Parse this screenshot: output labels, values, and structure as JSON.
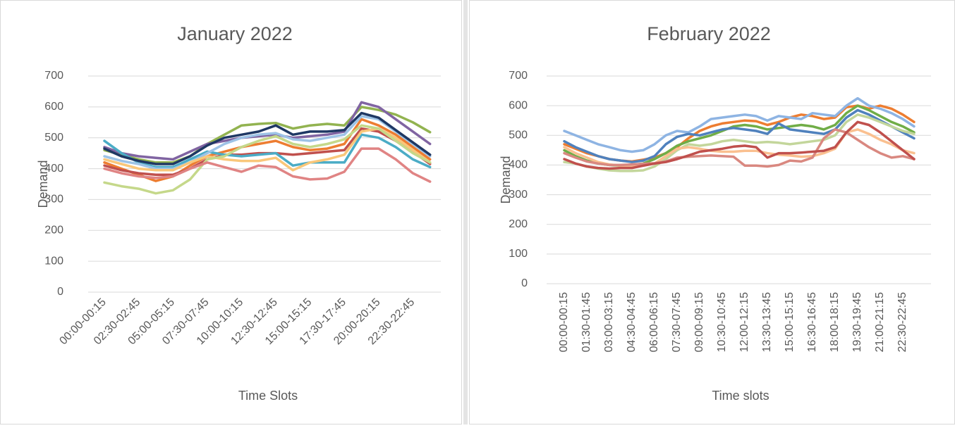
{
  "chart_data": [
    {
      "type": "line",
      "title": "January 2022",
      "xlabel": "Time Slots",
      "ylabel": "Demand",
      "categories": [
        "00:00-00:15",
        null,
        "02:30-02:45",
        null,
        "05:00-05:15",
        null,
        "07:30-07:45",
        null,
        "10:00-10:15",
        null,
        "12:30-12:45",
        null,
        "15:00-15:15",
        null,
        "17:30-17:45",
        null,
        "20:00-20:15",
        null,
        "22:30-22:45",
        null
      ],
      "ylim": [
        0,
        700
      ],
      "yticks": [
        0,
        100,
        200,
        300,
        400,
        500,
        600,
        700
      ],
      "grid": true,
      "series": [
        {
          "color": "#92b350",
          "values": [
            460,
            445,
            430,
            420,
            420,
            440,
            480,
            510,
            540,
            545,
            548,
            530,
            540,
            545,
            540,
            600,
            590,
            575,
            550,
            518
          ]
        },
        {
          "color": "#8064a2",
          "values": [
            470,
            450,
            440,
            435,
            430,
            455,
            480,
            490,
            500,
            505,
            510,
            500,
            505,
            510,
            520,
            615,
            600,
            560,
            520,
            480
          ]
        },
        {
          "color": "#ed7d31",
          "values": [
            420,
            400,
            380,
            360,
            375,
            410,
            440,
            455,
            470,
            480,
            490,
            470,
            460,
            465,
            480,
            560,
            540,
            510,
            470,
            430
          ]
        },
        {
          "color": "#c0504d",
          "values": [
            410,
            395,
            385,
            380,
            380,
            400,
            430,
            445,
            445,
            450,
            450,
            445,
            450,
            455,
            460,
            530,
            520,
            490,
            455,
            415
          ]
        },
        {
          "color": "#4bacc6",
          "values": [
            490,
            450,
            420,
            405,
            405,
            430,
            455,
            445,
            440,
            445,
            450,
            410,
            420,
            420,
            420,
            510,
            500,
            470,
            430,
            405
          ]
        },
        {
          "color": "#9dc3e6",
          "values": [
            440,
            425,
            415,
            400,
            400,
            420,
            450,
            480,
            500,
            510,
            515,
            495,
            490,
            500,
            510,
            570,
            560,
            520,
            480,
            440
          ]
        },
        {
          "color": "#f9c77a",
          "values": [
            430,
            415,
            400,
            395,
            395,
            420,
            440,
            430,
            425,
            425,
            435,
            395,
            420,
            430,
            445,
            520,
            530,
            500,
            460,
            420
          ]
        },
        {
          "color": "#c5d88a",
          "values": [
            355,
            343,
            335,
            320,
            330,
            365,
            430,
            440,
            470,
            490,
            505,
            480,
            470,
            480,
            495,
            540,
            530,
            490,
            450,
            420
          ]
        },
        {
          "color": "#e08484",
          "values": [
            400,
            385,
            375,
            370,
            375,
            400,
            420,
            405,
            390,
            410,
            405,
            375,
            365,
            368,
            390,
            465,
            465,
            430,
            385,
            358
          ]
        },
        {
          "color": "#1f3864",
          "values": [
            465,
            440,
            425,
            415,
            415,
            440,
            475,
            500,
            510,
            520,
            540,
            510,
            520,
            520,
            525,
            580,
            565,
            525,
            485,
            445
          ]
        }
      ]
    },
    {
      "type": "line",
      "title": "February 2022",
      "xlabel": "Time slots",
      "ylabel": "Demand",
      "categories": [
        "00:00-00:15",
        null,
        "01:30-01:45",
        null,
        "03:00-03:15",
        null,
        "04:30-04:45",
        null,
        "06:00-06:15",
        null,
        "07:30-07:45",
        null,
        "09:00-09:15",
        null,
        "10:30-10:45",
        null,
        "12:00-12:15",
        null,
        "13:30-13:45",
        null,
        "15:00-15:15",
        null,
        "16:30-16:45",
        null,
        "18:00-18:15",
        null,
        "19:30-19:45",
        null,
        "21:00-21:15",
        null,
        "22:30-22:45",
        null
      ],
      "ylim": [
        0,
        700
      ],
      "yticks": [
        0,
        100,
        200,
        300,
        400,
        500,
        600,
        700
      ],
      "grid": true,
      "series": [
        {
          "color": "#ed7d31",
          "values": [
            470,
            455,
            440,
            430,
            420,
            415,
            412,
            418,
            425,
            440,
            460,
            490,
            515,
            530,
            540,
            545,
            550,
            548,
            535,
            545,
            560,
            570,
            565,
            555,
            560,
            595,
            600,
            590,
            600,
            590,
            570,
            545
          ]
        },
        {
          "color": "#8eb4e3",
          "values": [
            515,
            500,
            485,
            470,
            460,
            450,
            445,
            450,
            470,
            500,
            515,
            510,
            530,
            555,
            560,
            565,
            570,
            565,
            550,
            565,
            560,
            555,
            575,
            570,
            565,
            600,
            625,
            600,
            590,
            575,
            555,
            530
          ]
        },
        {
          "color": "#70ad47",
          "values": [
            450,
            430,
            415,
            405,
            400,
            398,
            400,
            405,
            420,
            440,
            465,
            480,
            490,
            500,
            515,
            530,
            535,
            530,
            520,
            525,
            530,
            535,
            530,
            520,
            535,
            575,
            600,
            585,
            565,
            545,
            530,
            510
          ]
        },
        {
          "color": "#4f81bd",
          "values": [
            480,
            460,
            445,
            430,
            420,
            415,
            410,
            415,
            430,
            470,
            495,
            505,
            500,
            510,
            520,
            525,
            520,
            515,
            505,
            540,
            520,
            515,
            510,
            505,
            520,
            560,
            585,
            570,
            550,
            530,
            510,
            490
          ]
        },
        {
          "color": "#c3d69b",
          "values": [
            410,
            405,
            395,
            388,
            382,
            380,
            380,
            382,
            395,
            420,
            450,
            470,
            465,
            470,
            480,
            485,
            480,
            475,
            478,
            475,
            470,
            475,
            480,
            485,
            500,
            545,
            570,
            560,
            545,
            530,
            515,
            505
          ]
        },
        {
          "color": "#fac090",
          "values": [
            460,
            440,
            425,
            410,
            402,
            398,
            395,
            398,
            405,
            430,
            455,
            460,
            455,
            448,
            445,
            445,
            448,
            448,
            440,
            435,
            432,
            428,
            430,
            440,
            455,
            510,
            520,
            505,
            485,
            470,
            450,
            440
          ]
        },
        {
          "color": "#d98880",
          "values": [
            440,
            425,
            412,
            405,
            400,
            400,
            402,
            404,
            406,
            412,
            425,
            428,
            430,
            432,
            430,
            428,
            398,
            398,
            395,
            400,
            415,
            412,
            425,
            490,
            520,
            510,
            485,
            460,
            440,
            425,
            430,
            420
          ]
        },
        {
          "color": "#c0504d",
          "values": [
            420,
            405,
            395,
            390,
            388,
            390,
            390,
            398,
            405,
            410,
            420,
            432,
            445,
            450,
            455,
            462,
            465,
            460,
            425,
            440,
            440,
            442,
            445,
            448,
            460,
            510,
            545,
            535,
            510,
            480,
            450,
            420
          ]
        }
      ]
    }
  ]
}
